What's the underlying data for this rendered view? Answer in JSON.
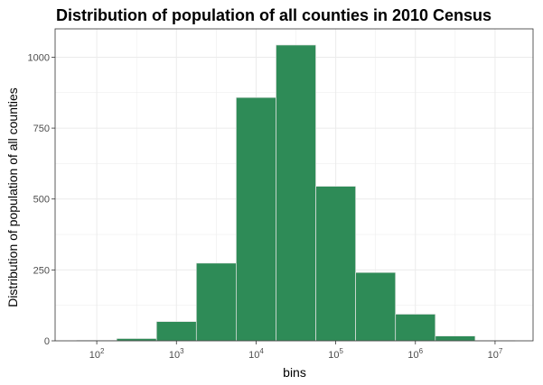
{
  "chart_data": {
    "type": "bar",
    "title": "Distribution of population of all counties in 2010 Census",
    "xlabel": "bins",
    "ylabel": "Distribution of population of all counties",
    "x_scale": "log10",
    "xlim": [
      30,
      30000000
    ],
    "ylim": [
      0,
      1100
    ],
    "grid": true,
    "bars": [
      {
        "x0": 56.2,
        "x1": 177.8,
        "value": 2
      },
      {
        "x0": 177.8,
        "x1": 562.3,
        "value": 8
      },
      {
        "x0": 562.3,
        "x1": 1778,
        "value": 68
      },
      {
        "x0": 1778,
        "x1": 5623,
        "value": 274
      },
      {
        "x0": 5623,
        "x1": 17783,
        "value": 858
      },
      {
        "x0": 17783,
        "x1": 56234,
        "value": 1043
      },
      {
        "x0": 56234,
        "x1": 177828,
        "value": 545
      },
      {
        "x0": 177828,
        "x1": 562341,
        "value": 241
      },
      {
        "x0": 562341,
        "x1": 1778279,
        "value": 94
      },
      {
        "x0": 1778279,
        "x1": 5623413,
        "value": 17
      },
      {
        "x0": 5623413,
        "x1": 17782794,
        "value": 1
      }
    ],
    "x_ticks": [
      {
        "value": 100,
        "base": "10",
        "exp": "2"
      },
      {
        "value": 1000,
        "base": "10",
        "exp": "3"
      },
      {
        "value": 10000,
        "base": "10",
        "exp": "4"
      },
      {
        "value": 100000,
        "base": "10",
        "exp": "5"
      },
      {
        "value": 1000000,
        "base": "10",
        "exp": "6"
      },
      {
        "value": 10000000,
        "base": "10",
        "exp": "7"
      }
    ],
    "y_ticks": [
      {
        "value": 0,
        "label": "0"
      },
      {
        "value": 250,
        "label": "250"
      },
      {
        "value": 500,
        "label": "500"
      },
      {
        "value": 750,
        "label": "750"
      },
      {
        "value": 1000,
        "label": "1000"
      }
    ],
    "colors": {
      "bar_fill": "#2e8b57",
      "bar_outline": "#e6e6e6",
      "grid": "#ebebeb",
      "panel_border": "#333333",
      "axis_text": "#4d4d4d"
    }
  }
}
